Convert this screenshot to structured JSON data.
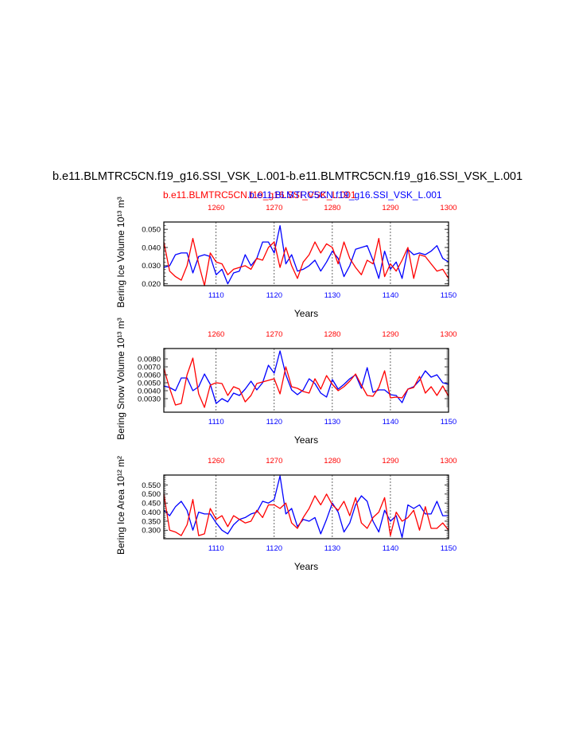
{
  "title": "b.e11.BLMTRC5CN.f19_g16.SSI_VSK_L.001-b.e11.BLMTRC5CN.f19_g16.SSI_VSK_L.001",
  "subtitle_red": "b.e11.BLMTRC5CN.f19_g16.SSI_VSK_L.001",
  "subtitle_blue": "b.e11.BLMTRC5CN.f19_g16.SSI_VSK_L.001",
  "colors": {
    "run_a": "#ff0000",
    "run_b": "#0000ff",
    "axis": "#000000",
    "grid": "#000000"
  },
  "chart_data": [
    {
      "type": "line",
      "ylabel": "Bering Ice Volume 10¹³ m³",
      "xlabel": "Years",
      "ylim": [
        0.019,
        0.054
      ],
      "yticks": [
        "0.020",
        "0.030",
        "0.040",
        "0.050"
      ],
      "ytick_values": [
        0.02,
        0.03,
        0.04,
        0.05
      ],
      "x_bottom": {
        "range": [
          1101,
          1150
        ],
        "ticks": [
          1110,
          1120,
          1130,
          1140,
          1150
        ],
        "color": "#0000ff"
      },
      "x_top": {
        "range": [
          1251,
          1300
        ],
        "ticks": [
          1260,
          1270,
          1280,
          1290,
          1300
        ],
        "color": "#ff0000"
      },
      "grid": "vertical dashed at tick positions",
      "series": [
        {
          "color": "#0000ff",
          "axis": "bottom",
          "values": [
            0.029,
            0.03,
            0.036,
            0.037,
            0.037,
            0.026,
            0.035,
            0.036,
            0.035,
            0.025,
            0.028,
            0.02,
            0.026,
            0.027,
            0.036,
            0.03,
            0.034,
            0.043,
            0.043,
            0.037,
            0.052,
            0.031,
            0.036,
            0.027,
            0.028,
            0.03,
            0.033,
            0.027,
            0.032,
            0.038,
            0.034,
            0.024,
            0.03,
            0.039,
            0.04,
            0.041,
            0.033,
            0.023,
            0.038,
            0.028,
            0.032,
            0.023,
            0.039,
            0.036,
            0.037,
            0.036,
            0.038,
            0.041,
            0.034,
            0.032
          ]
        },
        {
          "color": "#ff0000",
          "axis": "top",
          "values": [
            0.043,
            0.027,
            0.024,
            0.022,
            0.03,
            0.045,
            0.031,
            0.019,
            0.037,
            0.032,
            0.031,
            0.025,
            0.028,
            0.029,
            0.03,
            0.028,
            0.034,
            0.033,
            0.04,
            0.043,
            0.029,
            0.04,
            0.03,
            0.023,
            0.032,
            0.036,
            0.043,
            0.037,
            0.042,
            0.04,
            0.031,
            0.043,
            0.034,
            0.029,
            0.025,
            0.033,
            0.031,
            0.045,
            0.024,
            0.031,
            0.027,
            0.033,
            0.04,
            0.023,
            0.036,
            0.035,
            0.031,
            0.027,
            0.028,
            0.023
          ]
        }
      ]
    },
    {
      "type": "line",
      "ylabel": "Bering Snow Volume 10¹³ m³",
      "xlabel": "Years",
      "ylim": [
        0.0013,
        0.0093
      ],
      "yticks": [
        "0.0030",
        "0.0040",
        "0.0050",
        "0.0060",
        "0.0070",
        "0.0080"
      ],
      "ytick_values": [
        0.003,
        0.004,
        0.005,
        0.006,
        0.007,
        0.008
      ],
      "x_bottom": {
        "range": [
          1101,
          1150
        ],
        "ticks": [
          1110,
          1120,
          1130,
          1140,
          1150
        ],
        "color": "#0000ff"
      },
      "x_top": {
        "range": [
          1251,
          1300
        ],
        "ticks": [
          1260,
          1270,
          1280,
          1290,
          1300
        ],
        "color": "#ff0000"
      },
      "grid": "vertical dashed at tick positions",
      "series": [
        {
          "color": "#0000ff",
          "axis": "bottom",
          "values": [
            0.0046,
            0.0044,
            0.004,
            0.0056,
            0.0056,
            0.004,
            0.0045,
            0.0061,
            0.0048,
            0.0024,
            0.003,
            0.0026,
            0.0037,
            0.0034,
            0.0042,
            0.0052,
            0.0041,
            0.005,
            0.0072,
            0.0062,
            0.009,
            0.006,
            0.0041,
            0.0035,
            0.0041,
            0.0055,
            0.0049,
            0.0037,
            0.0032,
            0.0054,
            0.0042,
            0.0048,
            0.0055,
            0.006,
            0.0043,
            0.0069,
            0.0038,
            0.0041,
            0.0041,
            0.0035,
            0.0034,
            0.0025,
            0.0042,
            0.0045,
            0.0053,
            0.0065,
            0.0057,
            0.006,
            0.005,
            0.0048
          ]
        },
        {
          "color": "#ff0000",
          "axis": "top",
          "values": [
            0.0068,
            0.0043,
            0.0022,
            0.0024,
            0.006,
            0.0081,
            0.0036,
            0.0019,
            0.0047,
            0.005,
            0.0049,
            0.0034,
            0.0045,
            0.0042,
            0.0026,
            0.0034,
            0.0049,
            0.0051,
            0.0053,
            0.0055,
            0.0036,
            0.007,
            0.0045,
            0.0043,
            0.0039,
            0.0037,
            0.0055,
            0.0042,
            0.0059,
            0.0048,
            0.004,
            0.0045,
            0.0052,
            0.0061,
            0.0047,
            0.0034,
            0.0033,
            0.0044,
            0.0065,
            0.0031,
            0.0032,
            0.0031,
            0.0042,
            0.0044,
            0.0058,
            0.0037,
            0.0045,
            0.0034,
            0.0046,
            0.0033
          ]
        }
      ]
    },
    {
      "type": "line",
      "ylabel": "Bering Ice Area 10¹² m²",
      "xlabel": "Years",
      "ylim": [
        0.253,
        0.605
      ],
      "yticks": [
        "0.300",
        "0.350",
        "0.400",
        "0.450",
        "0.500",
        "0.550"
      ],
      "ytick_values": [
        0.3,
        0.35,
        0.4,
        0.45,
        0.5,
        0.55
      ],
      "x_bottom": {
        "range": [
          1101,
          1150
        ],
        "ticks": [
          1110,
          1120,
          1130,
          1140,
          1150
        ],
        "color": "#0000ff"
      },
      "x_top": {
        "range": [
          1251,
          1300
        ],
        "ticks": [
          1260,
          1270,
          1280,
          1290,
          1300
        ],
        "color": "#ff0000"
      },
      "grid": "vertical dashed at tick positions",
      "series": [
        {
          "color": "#0000ff",
          "axis": "bottom",
          "values": [
            0.41,
            0.38,
            0.43,
            0.46,
            0.41,
            0.3,
            0.4,
            0.39,
            0.39,
            0.34,
            0.3,
            0.28,
            0.33,
            0.36,
            0.37,
            0.39,
            0.4,
            0.46,
            0.45,
            0.47,
            0.6,
            0.39,
            0.42,
            0.32,
            0.36,
            0.35,
            0.37,
            0.28,
            0.36,
            0.45,
            0.4,
            0.29,
            0.34,
            0.44,
            0.49,
            0.46,
            0.35,
            0.29,
            0.41,
            0.35,
            0.38,
            0.26,
            0.44,
            0.42,
            0.44,
            0.39,
            0.39,
            0.46,
            0.38,
            0.38
          ]
        },
        {
          "color": "#ff0000",
          "axis": "top",
          "values": [
            0.5,
            0.3,
            0.29,
            0.27,
            0.33,
            0.47,
            0.27,
            0.28,
            0.42,
            0.36,
            0.38,
            0.32,
            0.38,
            0.36,
            0.34,
            0.35,
            0.41,
            0.37,
            0.44,
            0.44,
            0.42,
            0.45,
            0.34,
            0.31,
            0.37,
            0.42,
            0.49,
            0.44,
            0.5,
            0.44,
            0.41,
            0.46,
            0.38,
            0.48,
            0.34,
            0.31,
            0.37,
            0.4,
            0.48,
            0.27,
            0.4,
            0.35,
            0.37,
            0.41,
            0.3,
            0.43,
            0.31,
            0.31,
            0.34,
            0.3
          ]
        }
      ]
    }
  ]
}
